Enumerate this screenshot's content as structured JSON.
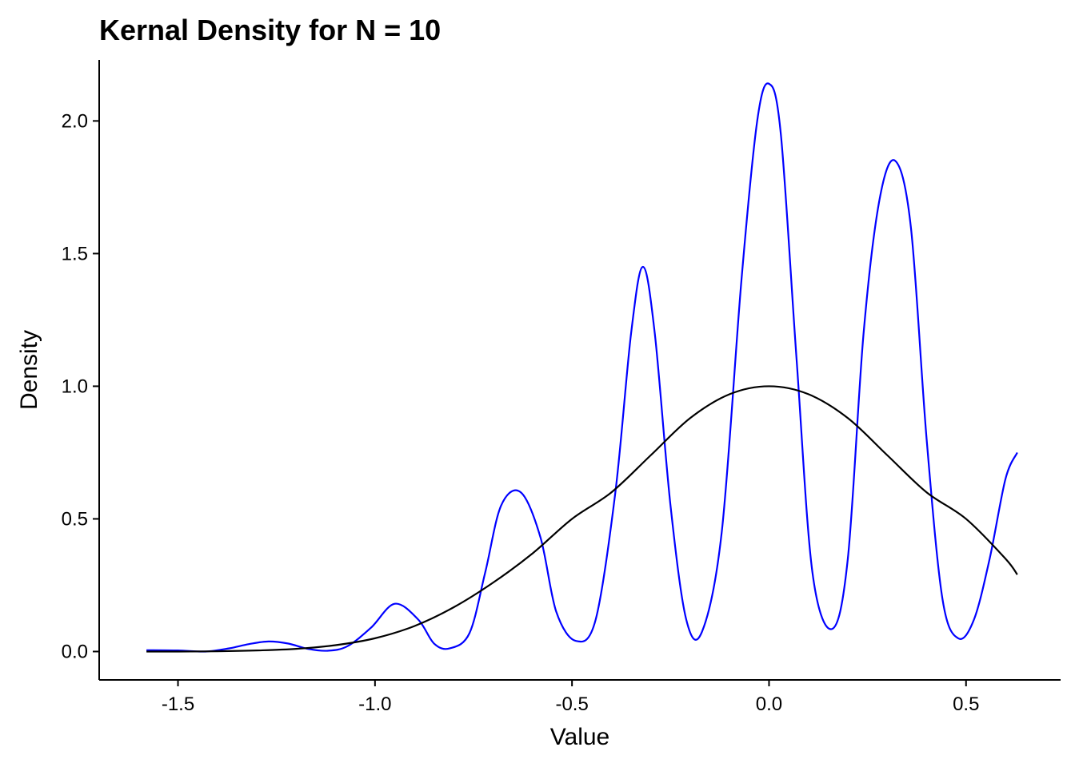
{
  "chart_data": {
    "type": "line",
    "title": "Kernal Density for N = 10",
    "xlabel": "Value",
    "ylabel": "Density",
    "xlim": [
      -1.7,
      0.74
    ],
    "ylim": [
      -0.107,
      2.23
    ],
    "xticks": [
      -1.5,
      -1.0,
      -0.5,
      0.0,
      0.5
    ],
    "xtick_labels": [
      "-1.5",
      "-1.0",
      "-0.5",
      "0.0",
      "0.5"
    ],
    "yticks": [
      0.0,
      0.5,
      1.0,
      1.5,
      2.0
    ],
    "ytick_labels": [
      "0.0",
      "0.5",
      "1.0",
      "1.5",
      "2.0"
    ],
    "grid": false,
    "legend": "none",
    "series": [
      {
        "color": "#0000ff",
        "x": [
          -1.58,
          -1.5,
          -1.43,
          -1.37,
          -1.32,
          -1.27,
          -1.22,
          -1.17,
          -1.12,
          -1.07,
          -1.01,
          -0.95,
          -0.89,
          -0.85,
          -0.81,
          -0.76,
          -0.72,
          -0.68,
          -0.63,
          -0.58,
          -0.54,
          -0.49,
          -0.44,
          -0.39,
          -0.35,
          -0.32,
          -0.29,
          -0.25,
          -0.21,
          -0.17,
          -0.12,
          -0.07,
          -0.03,
          0.0,
          0.03,
          0.07,
          0.11,
          0.16,
          0.2,
          0.24,
          0.28,
          0.32,
          0.36,
          0.4,
          0.44,
          0.48,
          0.52,
          0.56,
          0.6,
          0.63
        ],
        "y": [
          0.005,
          0.004,
          0.0,
          0.012,
          0.028,
          0.038,
          0.03,
          0.01,
          0.003,
          0.02,
          0.09,
          0.18,
          0.12,
          0.03,
          0.012,
          0.07,
          0.3,
          0.55,
          0.6,
          0.43,
          0.15,
          0.04,
          0.12,
          0.6,
          1.2,
          1.45,
          1.2,
          0.55,
          0.12,
          0.075,
          0.45,
          1.4,
          2.0,
          2.14,
          1.95,
          1.1,
          0.3,
          0.085,
          0.35,
          1.2,
          1.7,
          1.85,
          1.6,
          0.8,
          0.2,
          0.05,
          0.12,
          0.35,
          0.65,
          0.75
        ]
      },
      {
        "color": "#000000",
        "x": [
          -1.58,
          -1.5,
          -1.4,
          -1.3,
          -1.2,
          -1.1,
          -1.0,
          -0.9,
          -0.8,
          -0.7,
          -0.6,
          -0.5,
          -0.4,
          -0.3,
          -0.2,
          -0.1,
          0.0,
          0.1,
          0.2,
          0.3,
          0.4,
          0.5,
          0.6,
          0.63
        ],
        "y": [
          0.0,
          0.0,
          0.001,
          0.004,
          0.01,
          0.024,
          0.05,
          0.096,
          0.167,
          0.26,
          0.37,
          0.5,
          0.6,
          0.74,
          0.88,
          0.97,
          1.0,
          0.97,
          0.88,
          0.74,
          0.6,
          0.5,
          0.35,
          0.29
        ]
      }
    ]
  }
}
